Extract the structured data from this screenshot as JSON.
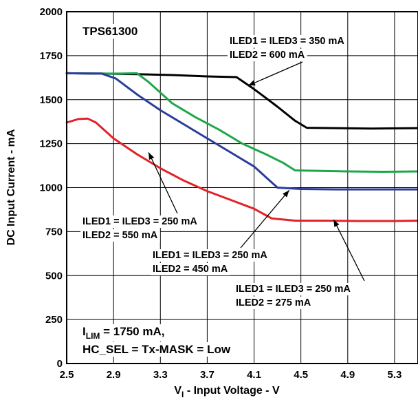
{
  "chart_data": {
    "type": "line",
    "title": "",
    "part_number": "TPS61300",
    "xlabel": "V_I - Input Voltage - V",
    "xlabel_parts": {
      "main": "V",
      "sub": "I",
      "rest": " - Input Voltage - V"
    },
    "ylabel": "DC Input Current - mA",
    "xlim": [
      2.5,
      5.5
    ],
    "ylim": [
      0,
      2000
    ],
    "x_ticks": [
      2.5,
      2.9,
      3.3,
      3.7,
      4.1,
      4.5,
      4.9,
      5.3
    ],
    "x_tick_labels": [
      "2.5",
      "2.9",
      "3.3",
      "3.7",
      "4.1",
      "4.5",
      "4.9",
      "5.3"
    ],
    "y_ticks": [
      0,
      250,
      500,
      750,
      1000,
      1250,
      1500,
      1750,
      2000
    ],
    "y_tick_labels": [
      "0",
      "250",
      "500",
      "750",
      "1000",
      "1250",
      "1500",
      "1750",
      "2000"
    ],
    "grid": true,
    "legend": "none",
    "series": [
      {
        "color": "#000000",
        "points": [
          [
            2.5,
            1650
          ],
          [
            2.8,
            1648
          ],
          [
            3.1,
            1645
          ],
          [
            3.4,
            1640
          ],
          [
            3.7,
            1632
          ],
          [
            3.95,
            1628
          ],
          [
            4.1,
            1560
          ],
          [
            4.3,
            1460
          ],
          [
            4.45,
            1380
          ],
          [
            4.55,
            1340
          ],
          [
            4.8,
            1338
          ],
          [
            5.1,
            1336
          ],
          [
            5.5,
            1338
          ]
        ]
      },
      {
        "color": "#1ca84a",
        "points": [
          [
            2.5,
            1650
          ],
          [
            2.8,
            1648
          ],
          [
            2.95,
            1648
          ],
          [
            3.1,
            1650
          ],
          [
            3.2,
            1600
          ],
          [
            3.4,
            1480
          ],
          [
            3.6,
            1400
          ],
          [
            3.8,
            1330
          ],
          [
            4.0,
            1250
          ],
          [
            4.2,
            1190
          ],
          [
            4.35,
            1140
          ],
          [
            4.45,
            1098
          ],
          [
            4.6,
            1096
          ],
          [
            4.9,
            1092
          ],
          [
            5.2,
            1090
          ],
          [
            5.5,
            1092
          ]
        ]
      },
      {
        "color": "#2b3d9b",
        "points": [
          [
            2.5,
            1650
          ],
          [
            2.8,
            1648
          ],
          [
            2.92,
            1620
          ],
          [
            3.1,
            1530
          ],
          [
            3.3,
            1440
          ],
          [
            3.5,
            1360
          ],
          [
            3.7,
            1280
          ],
          [
            3.9,
            1200
          ],
          [
            4.1,
            1120
          ],
          [
            4.2,
            1060
          ],
          [
            4.3,
            1000
          ],
          [
            4.5,
            992
          ],
          [
            4.8,
            990
          ],
          [
            5.2,
            990
          ],
          [
            5.5,
            990
          ]
        ]
      },
      {
        "color": "#e12229",
        "points": [
          [
            2.5,
            1370
          ],
          [
            2.6,
            1390
          ],
          [
            2.68,
            1392
          ],
          [
            2.75,
            1370
          ],
          [
            2.9,
            1280
          ],
          [
            3.1,
            1190
          ],
          [
            3.3,
            1110
          ],
          [
            3.5,
            1040
          ],
          [
            3.7,
            980
          ],
          [
            3.9,
            930
          ],
          [
            4.1,
            880
          ],
          [
            4.25,
            825
          ],
          [
            4.45,
            812
          ],
          [
            4.7,
            812
          ],
          [
            5.0,
            810
          ],
          [
            5.3,
            810
          ],
          [
            5.5,
            812
          ]
        ]
      }
    ],
    "annotations": [
      {
        "lines": [
          "ILED1 = ILED3 = 350 mA",
          "ILED2 = 600 mA"
        ]
      },
      {
        "lines": [
          "ILED1 = ILED3 = 250 mA",
          "ILED2 = 550 mA"
        ]
      },
      {
        "lines": [
          "ILED1 = ILED3 = 250 mA",
          "ILED2 = 450 mA"
        ]
      },
      {
        "lines": [
          "ILED1 = ILED3 = 250 mA",
          "ILED2 = 275 mA"
        ]
      }
    ],
    "condition": {
      "line1_main": "I",
      "line1_sub": "LIM",
      "line1_rest": " = 1750 mA,",
      "line2": "HC_SEL = Tx-MASK = Low"
    }
  }
}
